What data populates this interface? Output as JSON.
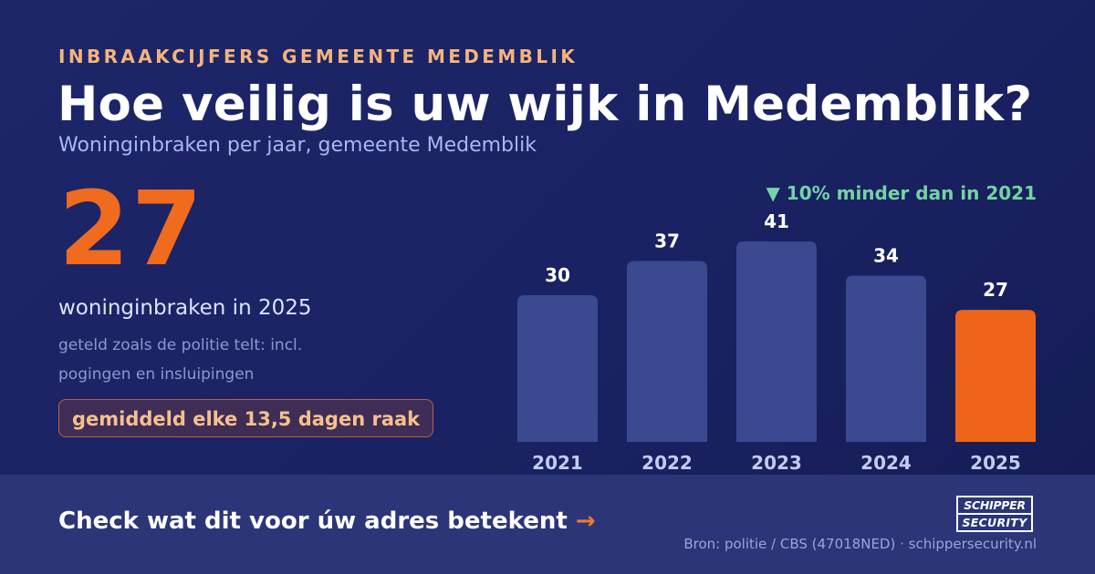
{
  "header": {
    "eyebrow": "INBRAAKCIJFERS GEMEENTE MEDEMBLIK",
    "title": "Hoe veilig is uw wijk in Medemblik?",
    "subtitle": "Woninginbraken per jaar, gemeente Medemblik"
  },
  "kpi": {
    "value": "27",
    "caption": "woninginbraken in 2025",
    "note": "geteld zoals de politie telt: incl. pogingen en insluipingen",
    "pill": "gemiddeld elke 13,5 dagen raak"
  },
  "trend": {
    "text": "▼ 10% minder dan in 2021"
  },
  "colors": {
    "bar": "#3a4990",
    "highlight": "#ee6418",
    "accent_orange": "#f06b1e",
    "trend_green": "#74d3a4",
    "background": "#1a2263"
  },
  "chart_data": {
    "type": "bar",
    "categories": [
      "2021",
      "2022",
      "2023",
      "2024",
      "2025"
    ],
    "values": [
      30,
      37,
      41,
      34,
      27
    ],
    "highlight_category": "2025",
    "ylim": [
      0,
      41
    ],
    "grid": false,
    "legend": "none"
  },
  "footer": {
    "cta": "Check wat dit voor úw adres betekent",
    "cta_arrow": "→",
    "source": "Bron: politie / CBS (47018NED) · schippersecurity.nl",
    "logo_line1": "SCHIPPER",
    "logo_line2": "SECURITY"
  }
}
